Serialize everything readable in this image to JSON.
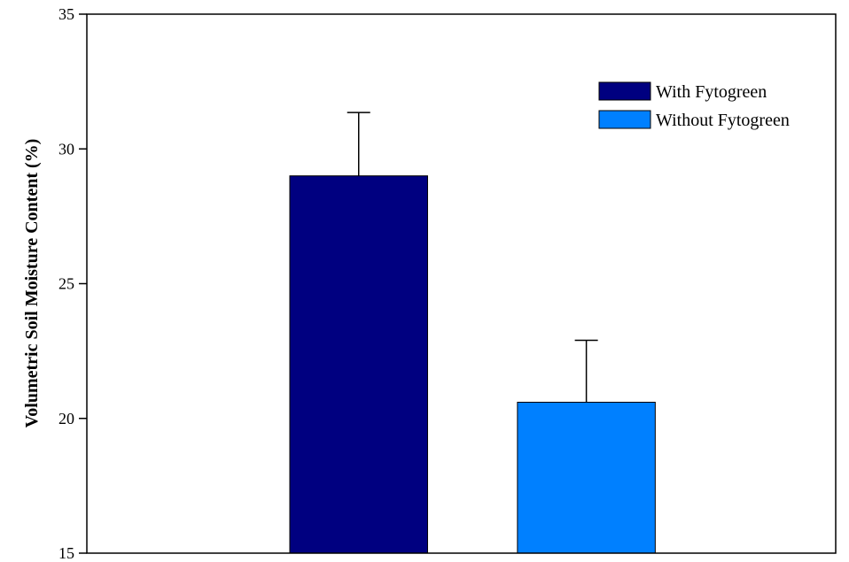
{
  "chart_data": {
    "type": "bar",
    "title": "",
    "xlabel": "",
    "ylabel": "Volumetric Soil Moisture Content (%)",
    "ylim": [
      15,
      35
    ],
    "yticks": [
      15,
      20,
      25,
      30,
      35
    ],
    "grid": false,
    "legend_position": "top-right",
    "series": [
      {
        "name": "With Fytogreen",
        "value": 29.0,
        "error": 2.35,
        "color": "#000080"
      },
      {
        "name": "Without Fytogreen",
        "value": 20.6,
        "error": 2.3,
        "color": "#0080ff"
      }
    ]
  }
}
